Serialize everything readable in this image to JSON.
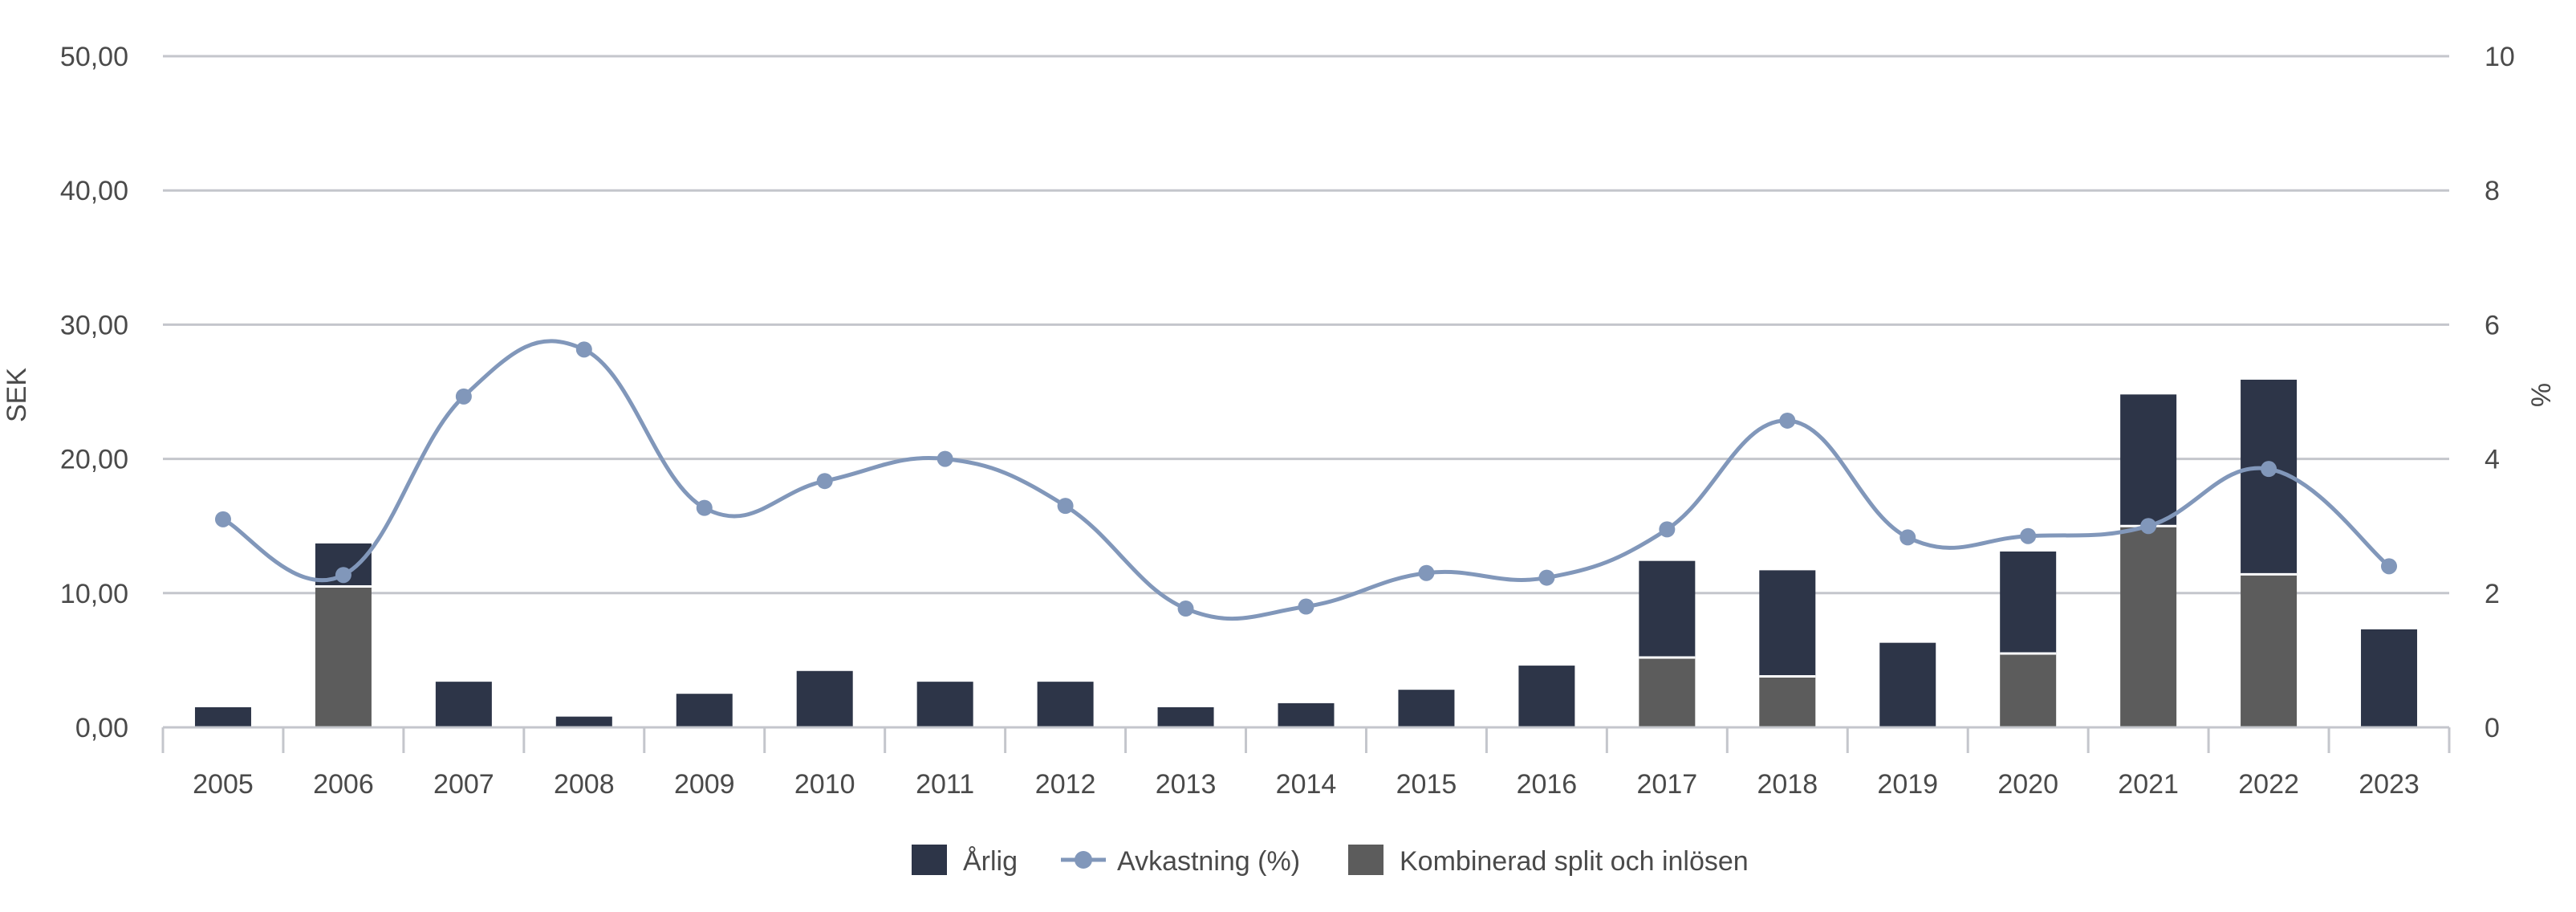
{
  "chart_data": {
    "type": "bar",
    "categories": [
      "2005",
      "2006",
      "2007",
      "2008",
      "2009",
      "2010",
      "2011",
      "2012",
      "2013",
      "2014",
      "2015",
      "2016",
      "2017",
      "2018",
      "2019",
      "2020",
      "2021",
      "2022",
      "2023"
    ],
    "series": [
      {
        "name": "Årlig",
        "kind": "bar",
        "stack": "dividend",
        "color": "#2d3548",
        "values": [
          1.5,
          3.2,
          3.4,
          0.8,
          2.5,
          4.2,
          3.4,
          3.4,
          1.5,
          1.8,
          2.8,
          4.6,
          7.2,
          7.9,
          6.3,
          7.6,
          9.8,
          14.5,
          7.3
        ]
      },
      {
        "name": "Kombinerad split och inlösen",
        "kind": "bar",
        "stack": "dividend",
        "color": "#5c5c5c",
        "values": [
          0,
          10.5,
          0,
          0,
          0,
          0,
          0,
          0,
          0,
          0,
          0,
          0,
          5.2,
          3.8,
          0,
          5.5,
          15.0,
          11.4,
          0
        ]
      },
      {
        "name": "Avkastning (%)",
        "kind": "line",
        "axis": "right",
        "color": "#8197ba",
        "values": [
          3.1,
          2.27,
          4.93,
          5.63,
          3.27,
          3.67,
          4.0,
          3.3,
          1.77,
          1.8,
          2.3,
          2.23,
          2.95,
          4.57,
          2.83,
          2.85,
          3.0,
          3.85,
          2.4
        ]
      }
    ],
    "y_left": {
      "label": "SEK",
      "range": [
        0,
        50
      ],
      "ticks": [
        "0,00",
        "10,00",
        "20,00",
        "30,00",
        "40,00",
        "50,00"
      ]
    },
    "y_right": {
      "label": "%",
      "range": [
        0,
        10
      ],
      "ticks": [
        "0",
        "2",
        "4",
        "6",
        "8",
        "10"
      ]
    },
    "grid": true,
    "legend_position": "bottom-center"
  }
}
